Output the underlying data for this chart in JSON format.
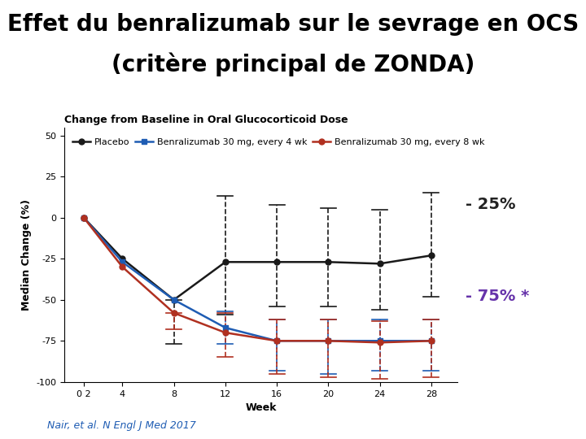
{
  "title_line1": "Effet du benralizumab sur le sevrage en OCS",
  "title_line2": "(critère principal de ZONDA)",
  "subtitle": "Change from Baseline in Oral Glucocorticoid Dose",
  "xlabel": "Week",
  "ylabel": "Median Change (%)",
  "citation": "Nair, et al. N Engl J Med 2017",
  "annotation_25": "- 25%",
  "annotation_75": "- 75% *",
  "xlim": [
    -0.5,
    30
  ],
  "ylim": [
    -100,
    55
  ],
  "yticks": [
    -100,
    -75,
    -50,
    -25,
    0,
    25,
    50
  ],
  "xtick_positions": [
    1,
    4,
    8,
    12,
    16,
    20,
    24,
    28
  ],
  "xtick_labels": [
    "0 2",
    "4",
    "8",
    "12",
    "16",
    "20",
    "24",
    "28"
  ],
  "placebo": {
    "label": "Placebo",
    "color": "#1a1a1a",
    "marker": "o",
    "x": [
      1,
      4,
      8,
      12,
      16,
      20,
      24,
      28
    ],
    "y": [
      0,
      -25,
      -50,
      -27,
      -27,
      -27,
      -28,
      -23
    ],
    "err_lo": [
      0,
      0,
      27,
      32,
      27,
      27,
      28,
      25
    ],
    "err_hi": [
      0,
      0,
      0,
      40,
      35,
      33,
      33,
      38
    ]
  },
  "benra_4wk": {
    "label": "Benralizumab 30 mg, every 4 wk",
    "color": "#1e5cb3",
    "marker": "s",
    "x": [
      1,
      4,
      8,
      12,
      16,
      20,
      24,
      28
    ],
    "y": [
      0,
      -27,
      -50,
      -67,
      -75,
      -75,
      -75,
      -75
    ],
    "err_lo": [
      0,
      0,
      0,
      10,
      18,
      20,
      18,
      18
    ],
    "err_hi": [
      0,
      0,
      0,
      10,
      13,
      13,
      13,
      13
    ]
  },
  "benra_8wk": {
    "label": "Benralizumab 30 mg, every 8 wk",
    "color": "#b03020",
    "marker": "o",
    "x": [
      1,
      4,
      8,
      12,
      16,
      20,
      24,
      28
    ],
    "y": [
      0,
      -30,
      -58,
      -70,
      -75,
      -75,
      -76,
      -75
    ],
    "err_lo": [
      0,
      0,
      10,
      15,
      20,
      22,
      22,
      22
    ],
    "err_hi": [
      0,
      0,
      0,
      12,
      13,
      13,
      13,
      13
    ]
  },
  "title_fontsize": 20,
  "subtitle_fontsize": 9,
  "axis_label_fontsize": 9,
  "tick_fontsize": 8,
  "legend_fontsize": 8,
  "annotation_25_fontsize": 14,
  "annotation_75_fontsize": 14,
  "citation_fontsize": 9,
  "annotation_25_color": "#222222",
  "annotation_75_color": "#6633aa",
  "background_color": "#ffffff"
}
